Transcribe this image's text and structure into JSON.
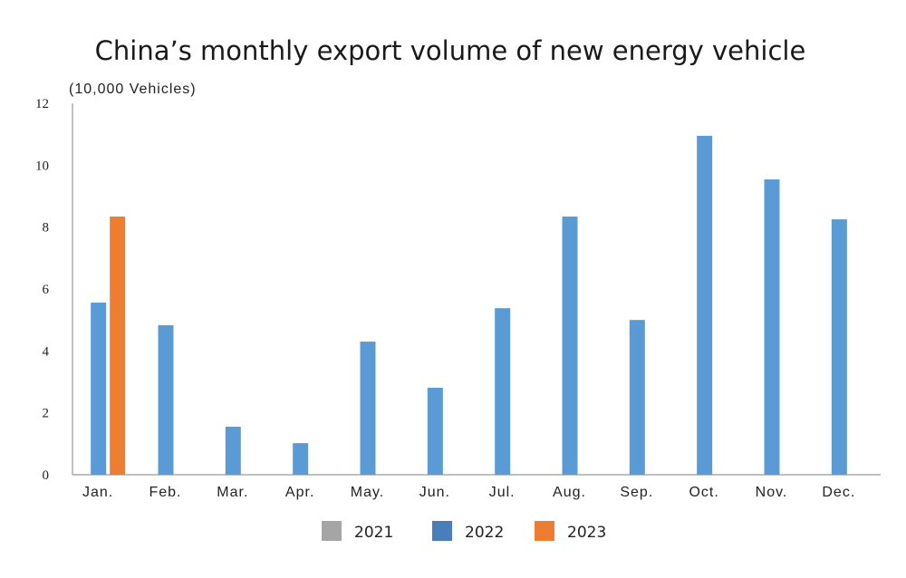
{
  "chart_data": {
    "type": "bar",
    "title": "China’s monthly export volume of new energy vehicle",
    "ylabel": "(10,000 Vehicles)",
    "xlabel": "",
    "ylim": [
      0,
      12
    ],
    "yticks": [
      0,
      2,
      4,
      6,
      8,
      10,
      12
    ],
    "grid": false,
    "legend_position": "bottom",
    "categories": [
      "Jan.",
      "Feb.",
      "Mar.",
      "Apr.",
      "May.",
      "Jun.",
      "Jul.",
      "Aug.",
      "Sep.",
      "Oct.",
      "Nov.",
      "Dec."
    ],
    "series": [
      {
        "name": "2021",
        "color": "#a5a5a5",
        "values": [
          null,
          null,
          null,
          null,
          null,
          null,
          null,
          null,
          null,
          null,
          null,
          null
        ]
      },
      {
        "name": "2022",
        "color": "#5b9bd5",
        "legend_color": "#4a7ebb",
        "values": [
          5.56,
          4.83,
          1.55,
          1.02,
          4.3,
          2.81,
          5.38,
          8.34,
          5.0,
          10.95,
          9.54,
          8.25
        ]
      },
      {
        "name": "2023",
        "color": "#ed7d31",
        "values": [
          8.34,
          null,
          null,
          null,
          null,
          null,
          null,
          null,
          null,
          null,
          null,
          null
        ]
      }
    ]
  }
}
